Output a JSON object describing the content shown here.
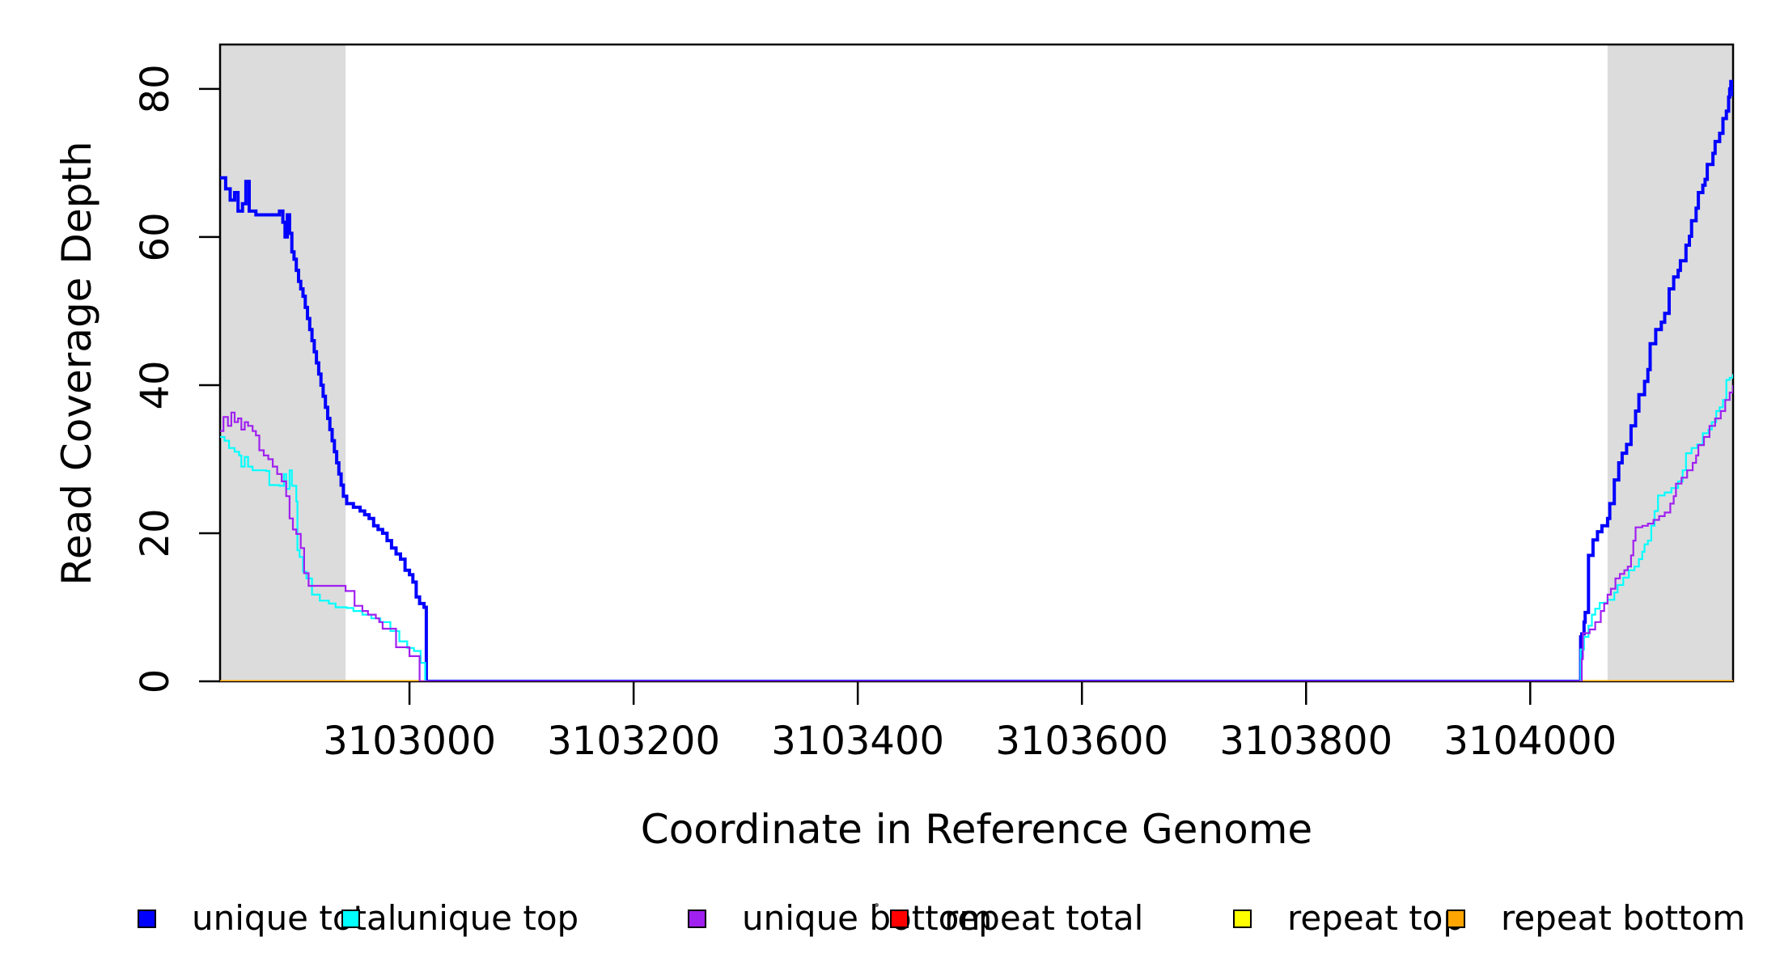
{
  "figure": {
    "background": "#FFFFFF",
    "shaded_region_color": "#DCDCDC"
  },
  "y_axis": {
    "label": "Read Coverage Depth",
    "tick_labels": [
      "0",
      "20",
      "40",
      "60",
      "80"
    ]
  },
  "x_axis": {
    "label": "Coordinate in Reference Genome",
    "tick_labels": [
      "3103000",
      "3103200",
      "3103400",
      "3103600",
      "3103800",
      "3104000"
    ]
  },
  "legend": {
    "items": [
      {
        "label": "unique total",
        "color": "#0000FF"
      },
      {
        "label": "unique top",
        "color": "#00FFFF"
      },
      {
        "label": "unique bottom",
        "color": "#A020F0"
      },
      {
        "label": "repeat total",
        "color": "#FF0000"
      },
      {
        "label": "repeat top",
        "color": "#FFFF00"
      },
      {
        "label": "repeat bottom",
        "color": "#FFA500"
      }
    ]
  },
  "chart_data": {
    "type": "line",
    "step": true,
    "title": "",
    "xlabel": "Coordinate in Reference Genome",
    "ylabel": "Read Coverage Depth",
    "xlim": [
      3102831,
      3104181
    ],
    "ylim": [
      0,
      86
    ],
    "x_ticks": [
      3103000,
      3103200,
      3103400,
      3103600,
      3103800,
      3104000
    ],
    "y_ticks": [
      0,
      20,
      40,
      60,
      80
    ],
    "grid": false,
    "legend_position": "bottom",
    "shaded_regions": [
      {
        "x0": 3102831,
        "x1": 3102943
      },
      {
        "x0": 3104069,
        "x1": 3104181
      }
    ],
    "series": [
      {
        "name": "repeat total",
        "color": "#FF0000",
        "line_width": 2,
        "points": [
          [
            3102831,
            0
          ],
          [
            3104181,
            0
          ]
        ]
      },
      {
        "name": "repeat top",
        "color": "#FFFF00",
        "line_width": 2,
        "points": [
          [
            3102831,
            0
          ],
          [
            3104181,
            0
          ]
        ]
      },
      {
        "name": "repeat bottom",
        "color": "#FFA500",
        "line_width": 3,
        "points": [
          [
            3102831,
            0
          ],
          [
            3104181,
            0
          ]
        ]
      },
      {
        "name": "unique total",
        "color": "#0000FF",
        "line_width": 4,
        "points": [
          [
            3102831,
            68
          ],
          [
            3102836,
            66.5
          ],
          [
            3102840,
            65
          ],
          [
            3102844,
            66
          ],
          [
            3102847,
            63.5
          ],
          [
            3102851,
            64.5
          ],
          [
            3102854,
            67.5
          ],
          [
            3102857,
            63.5
          ],
          [
            3102863,
            63
          ],
          [
            3102884,
            63.5
          ],
          [
            3102887,
            62
          ],
          [
            3102889,
            60
          ],
          [
            3102891,
            63
          ],
          [
            3102893,
            60.5
          ],
          [
            3102895,
            58
          ],
          [
            3102897,
            57
          ],
          [
            3102899,
            55.5
          ],
          [
            3102901,
            54
          ],
          [
            3102903,
            53
          ],
          [
            3102905,
            52
          ],
          [
            3102907,
            50.5
          ],
          [
            3102909,
            49
          ],
          [
            3102911,
            47.5
          ],
          [
            3102913,
            46
          ],
          [
            3102915,
            44.5
          ],
          [
            3102917,
            43
          ],
          [
            3102919,
            41.5
          ],
          [
            3102921,
            40
          ],
          [
            3102923,
            38.5
          ],
          [
            3102925,
            37
          ],
          [
            3102927,
            35.5
          ],
          [
            3102929,
            34
          ],
          [
            3102931,
            32.5
          ],
          [
            3102933,
            31
          ],
          [
            3102935,
            29.5
          ],
          [
            3102937,
            28
          ],
          [
            3102939,
            26.5
          ],
          [
            3102941,
            25
          ],
          [
            3102944,
            24
          ],
          [
            3102950,
            23.5
          ],
          [
            3102956,
            23
          ],
          [
            3102960,
            22.5
          ],
          [
            3102964,
            22
          ],
          [
            3102968,
            21
          ],
          [
            3102972,
            20.5
          ],
          [
            3102976,
            20
          ],
          [
            3102980,
            19
          ],
          [
            3102984,
            18
          ],
          [
            3102988,
            17.2
          ],
          [
            3102992,
            16.5
          ],
          [
            3102996,
            15
          ],
          [
            3103000,
            14.4
          ],
          [
            3103003,
            13.4
          ],
          [
            3103006,
            11.4
          ],
          [
            3103009,
            10.5
          ],
          [
            3103013,
            10
          ],
          [
            3103015,
            0
          ],
          [
            3104044,
            0
          ],
          [
            3104045,
            6
          ],
          [
            3104046,
            6.4
          ],
          [
            3104048,
            8
          ],
          [
            3104049,
            9.3
          ],
          [
            3104052,
            17
          ],
          [
            3104056,
            19.1
          ],
          [
            3104060,
            20.2
          ],
          [
            3104064,
            21
          ],
          [
            3104069,
            22
          ],
          [
            3104071,
            24
          ],
          [
            3104075,
            27.2
          ],
          [
            3104079,
            29.5
          ],
          [
            3104082,
            30.8
          ],
          [
            3104086,
            32
          ],
          [
            3104090,
            34.5
          ],
          [
            3104094,
            36.5
          ],
          [
            3104097,
            38.7
          ],
          [
            3104102,
            40.5
          ],
          [
            3104105,
            42.1
          ],
          [
            3104107,
            45.6
          ],
          [
            3104112,
            47.5
          ],
          [
            3104117,
            48.5
          ],
          [
            3104120,
            49.7
          ],
          [
            3104124,
            53
          ],
          [
            3104128,
            54.6
          ],
          [
            3104132,
            55.5
          ],
          [
            3104134,
            56.8
          ],
          [
            3104139,
            58.9
          ],
          [
            3104142,
            60.1
          ],
          [
            3104144,
            62.2
          ],
          [
            3104148,
            63.9
          ],
          [
            3104150,
            66
          ],
          [
            3104154,
            67
          ],
          [
            3104156,
            67.8
          ],
          [
            3104158,
            69.8
          ],
          [
            3104163,
            71.3
          ],
          [
            3104165,
            72.9
          ],
          [
            3104169,
            74
          ],
          [
            3104172,
            76
          ],
          [
            3104175,
            77
          ],
          [
            3104177,
            78.9
          ],
          [
            3104178,
            80
          ],
          [
            3104179,
            81
          ],
          [
            3104181,
            79
          ]
        ]
      },
      {
        "name": "unique top",
        "color": "#00FFFF",
        "line_width": 2.2,
        "points": [
          [
            3102831,
            33
          ],
          [
            3102835,
            32.5
          ],
          [
            3102839,
            31.5
          ],
          [
            3102844,
            31
          ],
          [
            3102848,
            30.5
          ],
          [
            3102850,
            29
          ],
          [
            3102853,
            30.3
          ],
          [
            3102856,
            29
          ],
          [
            3102860,
            28.5
          ],
          [
            3102872,
            28.4
          ],
          [
            3102875,
            26.5
          ],
          [
            3102884,
            26.4
          ],
          [
            3102888,
            28
          ],
          [
            3102890,
            26
          ],
          [
            3102893,
            28.5
          ],
          [
            3102895,
            26.4
          ],
          [
            3102899,
            24.3
          ],
          [
            3102900,
            17.7
          ],
          [
            3102902,
            16.8
          ],
          [
            3102905,
            14.8
          ],
          [
            3102908,
            13.9
          ],
          [
            3102913,
            11.7
          ],
          [
            3102920,
            10.9
          ],
          [
            3102928,
            10.5
          ],
          [
            3102934,
            10
          ],
          [
            3102944,
            9.9
          ],
          [
            3102950,
            9.5
          ],
          [
            3102958,
            9
          ],
          [
            3102966,
            8.5
          ],
          [
            3102974,
            8
          ],
          [
            3102983,
            6.8
          ],
          [
            3102991,
            5.4
          ],
          [
            3102998,
            4.5
          ],
          [
            3103004,
            4.1
          ],
          [
            3103010,
            2.5
          ],
          [
            3103014,
            0
          ],
          [
            3104044,
            0
          ],
          [
            3104045,
            4.3
          ],
          [
            3104048,
            6
          ],
          [
            3104052,
            7.5
          ],
          [
            3104055,
            9
          ],
          [
            3104058,
            9.8
          ],
          [
            3104062,
            10.6
          ],
          [
            3104069,
            11
          ],
          [
            3104075,
            12
          ],
          [
            3104078,
            13
          ],
          [
            3104083,
            14
          ],
          [
            3104088,
            15
          ],
          [
            3104093,
            15.5
          ],
          [
            3104097,
            16.5
          ],
          [
            3104100,
            17.5
          ],
          [
            3104102,
            18.5
          ],
          [
            3104105,
            19
          ],
          [
            3104108,
            21
          ],
          [
            3104111,
            23
          ],
          [
            3104114,
            25.1
          ],
          [
            3104120,
            25.5
          ],
          [
            3104126,
            26.1
          ],
          [
            3104132,
            27
          ],
          [
            3104136,
            28.5
          ],
          [
            3104139,
            30.8
          ],
          [
            3104144,
            31.5
          ],
          [
            3104149,
            32
          ],
          [
            3104154,
            33.5
          ],
          [
            3104159,
            34
          ],
          [
            3104162,
            35
          ],
          [
            3104166,
            36.5
          ],
          [
            3104169,
            37
          ],
          [
            3104172,
            38
          ],
          [
            3104175,
            40.7
          ],
          [
            3104178,
            41
          ],
          [
            3104181,
            41.5
          ]
        ]
      },
      {
        "name": "unique bottom",
        "color": "#A020F0",
        "line_width": 2.2,
        "points": [
          [
            3102831,
            33.8
          ],
          [
            3102834,
            35.7
          ],
          [
            3102838,
            34.5
          ],
          [
            3102841,
            36.3
          ],
          [
            3102844,
            35
          ],
          [
            3102847,
            35.5
          ],
          [
            3102850,
            34
          ],
          [
            3102853,
            35
          ],
          [
            3102856,
            34.5
          ],
          [
            3102860,
            33.8
          ],
          [
            3102863,
            33.2
          ],
          [
            3102866,
            31.2
          ],
          [
            3102870,
            30.5
          ],
          [
            3102874,
            30
          ],
          [
            3102878,
            29
          ],
          [
            3102882,
            28
          ],
          [
            3102886,
            27
          ],
          [
            3102890,
            25
          ],
          [
            3102893,
            22
          ],
          [
            3102896,
            20.5
          ],
          [
            3102899,
            19.9
          ],
          [
            3102903,
            18
          ],
          [
            3102906,
            14.6
          ],
          [
            3102910,
            12.9
          ],
          [
            3102943,
            12.2
          ],
          [
            3102951,
            10.2
          ],
          [
            3102958,
            9.5
          ],
          [
            3102963,
            9
          ],
          [
            3102970,
            8.5
          ],
          [
            3102973,
            8
          ],
          [
            3102976,
            7.1
          ],
          [
            3102988,
            4.6
          ],
          [
            3103000,
            3.4
          ],
          [
            3103009,
            0
          ],
          [
            3104044,
            0
          ],
          [
            3104046,
            3
          ],
          [
            3104047,
            6.5
          ],
          [
            3104053,
            7
          ],
          [
            3104058,
            8
          ],
          [
            3104063,
            9.5
          ],
          [
            3104066,
            10.5
          ],
          [
            3104069,
            11.7
          ],
          [
            3104072,
            12.5
          ],
          [
            3104076,
            13.9
          ],
          [
            3104080,
            14.5
          ],
          [
            3104084,
            15
          ],
          [
            3104087,
            15.5
          ],
          [
            3104090,
            17
          ],
          [
            3104092,
            19
          ],
          [
            3104094,
            20.8
          ],
          [
            3104100,
            21
          ],
          [
            3104105,
            21.3
          ],
          [
            3104110,
            21.8
          ],
          [
            3104115,
            22.3
          ],
          [
            3104120,
            22.8
          ],
          [
            3104125,
            24
          ],
          [
            3104128,
            25
          ],
          [
            3104130,
            26.7
          ],
          [
            3104135,
            27.5
          ],
          [
            3104140,
            28.5
          ],
          [
            3104145,
            29.5
          ],
          [
            3104148,
            30.5
          ],
          [
            3104150,
            31.9
          ],
          [
            3104155,
            33
          ],
          [
            3104160,
            34.5
          ],
          [
            3104165,
            35.5
          ],
          [
            3104170,
            36.5
          ],
          [
            3104174,
            38
          ],
          [
            3104178,
            39
          ],
          [
            3104181,
            40
          ]
        ]
      }
    ]
  }
}
